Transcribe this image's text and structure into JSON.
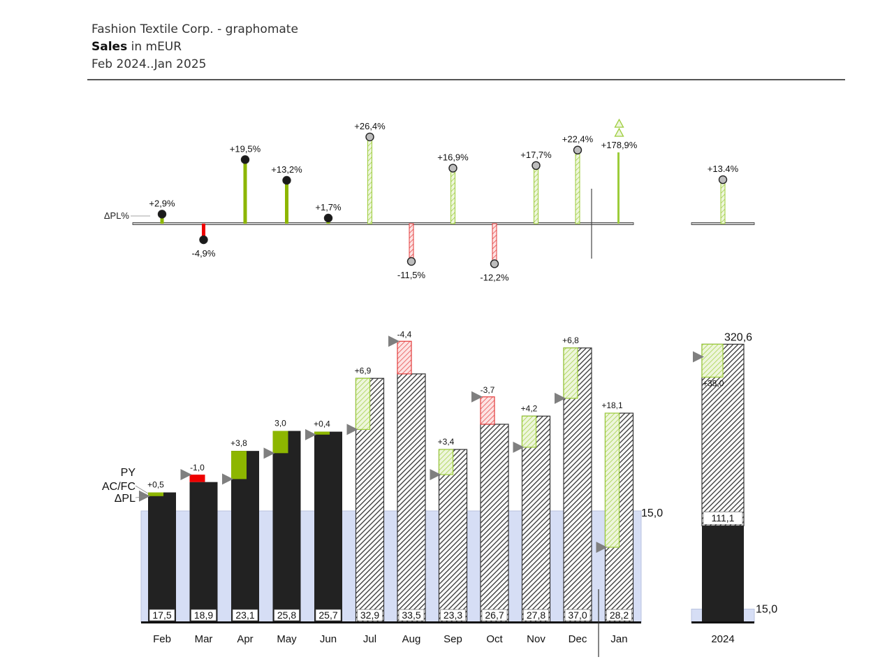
{
  "header": {
    "company": "Fashion Textile Corp. - graphomate",
    "measure_bold": "Sales",
    "measure_rest": " in mEUR",
    "period": "Feb 2024..Jan 2025"
  },
  "colors": {
    "actual": "#222222",
    "positive": "#8db600",
    "positive_forecast": "#9ccc3a",
    "negative": "#ee0000",
    "negative_forecast": "#e33b3b",
    "py_marker": "#7f7f7f",
    "band": "#d6def5"
  },
  "chart_data": [
    {
      "type": "pin",
      "title": "",
      "row_label": "ΔPL%",
      "categories": [
        "Feb",
        "Mar",
        "Apr",
        "May",
        "Jun",
        "Jul",
        "Aug",
        "Sep",
        "Oct",
        "Nov",
        "Dec",
        "Jan"
      ],
      "values": [
        2.9,
        -4.9,
        19.5,
        13.2,
        1.7,
        26.4,
        -11.5,
        16.9,
        -12.2,
        17.7,
        22.4,
        178.9
      ],
      "labels": [
        "+2,9%",
        "-4,9%",
        "+19,5%",
        "+13,2%",
        "+1,7%",
        "+26,4%",
        "-11,5%",
        "+16,9%",
        "-12,2%",
        "+17,7%",
        "+22,4%",
        "+178,9%"
      ],
      "scenario": [
        "AC",
        "AC",
        "AC",
        "AC",
        "AC",
        "FC",
        "FC",
        "FC",
        "FC",
        "FC",
        "FC",
        "FC"
      ],
      "outlier_marker": "Jan",
      "total": {
        "category": "2024",
        "value": 13.4,
        "label": "+13.4%"
      }
    },
    {
      "type": "bar",
      "title": "",
      "legend": [
        "PY",
        "AC/FC",
        "ΔPL"
      ],
      "categories": [
        "Feb",
        "Mar",
        "Apr",
        "May",
        "Jun",
        "Jul",
        "Aug",
        "Sep",
        "Oct",
        "Nov",
        "Dec",
        "Jan"
      ],
      "scenario": [
        "AC",
        "AC",
        "AC",
        "AC",
        "AC",
        "FC",
        "FC",
        "FC",
        "FC",
        "FC",
        "FC",
        "FC"
      ],
      "values": [
        17.5,
        18.9,
        23.1,
        25.8,
        25.7,
        32.9,
        33.5,
        23.3,
        26.7,
        27.8,
        37.0,
        28.2
      ],
      "value_labels": [
        "17,5",
        "18,9",
        "23,1",
        "25,8",
        "25,7",
        "32,9",
        "33,5",
        "23,3",
        "26,7",
        "27,8",
        "37,0",
        "28,2"
      ],
      "py": [
        17.0,
        19.9,
        19.3,
        22.8,
        25.3,
        26.0,
        37.9,
        19.9,
        30.4,
        23.6,
        30.2,
        10.1
      ],
      "delta_pl": [
        0.5,
        -1.0,
        3.8,
        3.0,
        0.4,
        6.9,
        -4.4,
        3.4,
        -3.7,
        4.2,
        6.8,
        18.1
      ],
      "delta_labels": [
        "+0,5",
        "-1,0",
        "+3,8",
        "3,0",
        "+0,4",
        "+6,9",
        "-4,4",
        "+3,4",
        "-3,7",
        "+4,2",
        "+6,8",
        "+18,1"
      ],
      "reference_line": {
        "value": 15.0,
        "label": "15,0"
      },
      "total": {
        "category": "2024",
        "value": 320.6,
        "label": "320,6",
        "ac_portion": 111.1,
        "ac_label": "111,1",
        "delta": 38.0,
        "delta_label": "+38,0",
        "reference_label": "15,0"
      }
    }
  ]
}
